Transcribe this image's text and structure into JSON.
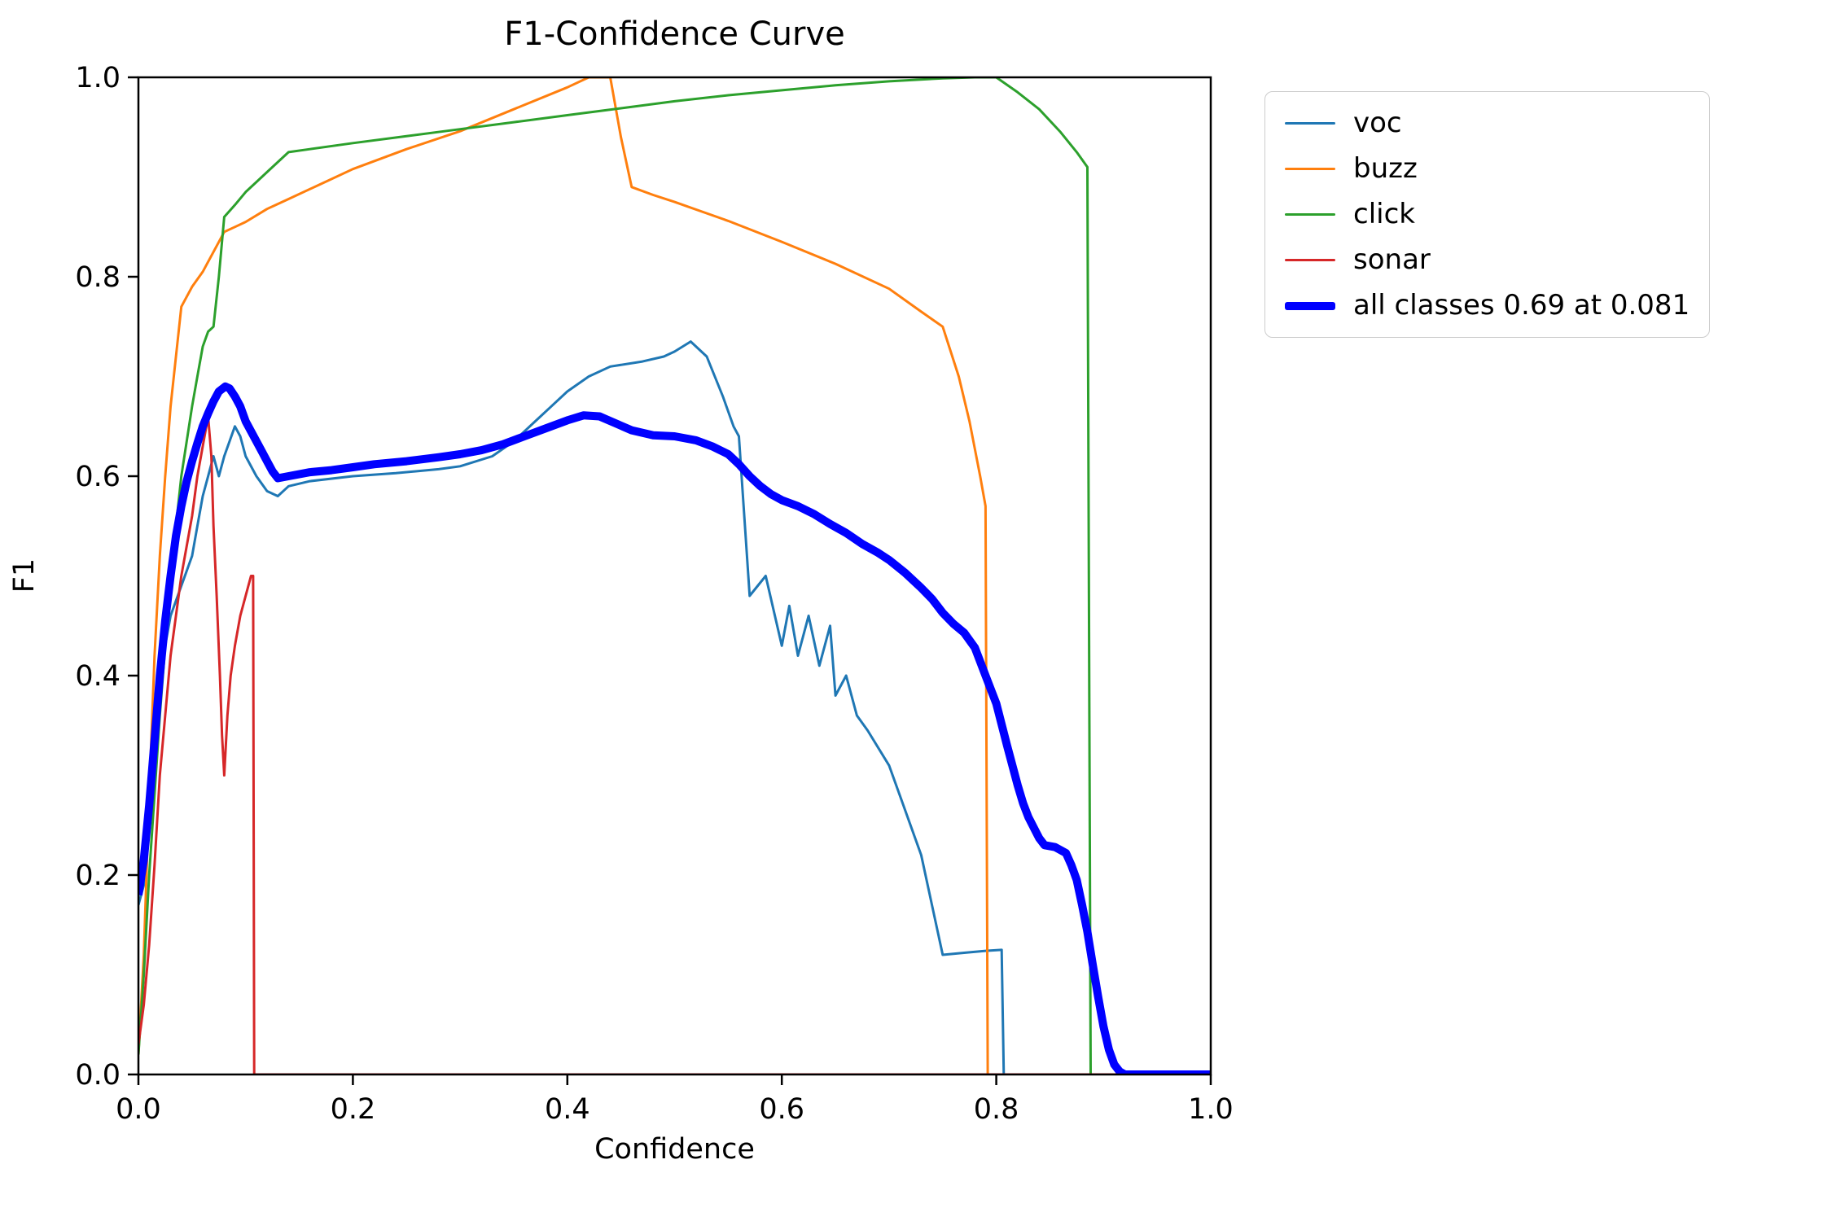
{
  "figure": {
    "title": "F1-Confidence Curve",
    "xlabel": "Confidence",
    "ylabel": "F1"
  },
  "chart_data": {
    "type": "line",
    "title": "F1-Confidence Curve",
    "xlabel": "Confidence",
    "ylabel": "F1",
    "xlim": [
      0.0,
      1.0
    ],
    "ylim": [
      0.0,
      1.0
    ],
    "xticks": [
      0.0,
      0.2,
      0.4,
      0.6,
      0.8,
      1.0
    ],
    "yticks": [
      0.0,
      0.2,
      0.4,
      0.6,
      0.8,
      1.0
    ],
    "grid": false,
    "background": "#ffffff",
    "axis_color": "#000000",
    "legend": {
      "position": "outside-upper-right",
      "entries": [
        "voc",
        "buzz",
        "click",
        "sonar",
        "all classes 0.69 at 0.081"
      ]
    },
    "best_f1": 0.69,
    "best_confidence": 0.081,
    "series": [
      {
        "name": "voc",
        "color": "#1f77b4",
        "width": 3,
        "points": [
          [
            0.0,
            0.17
          ],
          [
            0.005,
            0.19
          ],
          [
            0.01,
            0.26
          ],
          [
            0.015,
            0.33
          ],
          [
            0.02,
            0.4
          ],
          [
            0.03,
            0.46
          ],
          [
            0.04,
            0.49
          ],
          [
            0.05,
            0.52
          ],
          [
            0.055,
            0.55
          ],
          [
            0.06,
            0.58
          ],
          [
            0.07,
            0.62
          ],
          [
            0.075,
            0.6
          ],
          [
            0.08,
            0.62
          ],
          [
            0.09,
            0.65
          ],
          [
            0.095,
            0.64
          ],
          [
            0.1,
            0.62
          ],
          [
            0.11,
            0.6
          ],
          [
            0.12,
            0.585
          ],
          [
            0.13,
            0.58
          ],
          [
            0.14,
            0.59
          ],
          [
            0.16,
            0.595
          ],
          [
            0.2,
            0.6
          ],
          [
            0.24,
            0.603
          ],
          [
            0.28,
            0.607
          ],
          [
            0.3,
            0.61
          ],
          [
            0.33,
            0.62
          ],
          [
            0.35,
            0.635
          ],
          [
            0.37,
            0.655
          ],
          [
            0.385,
            0.67
          ],
          [
            0.4,
            0.685
          ],
          [
            0.42,
            0.7
          ],
          [
            0.44,
            0.71
          ],
          [
            0.47,
            0.715
          ],
          [
            0.49,
            0.72
          ],
          [
            0.5,
            0.725
          ],
          [
            0.515,
            0.735
          ],
          [
            0.53,
            0.72
          ],
          [
            0.545,
            0.68
          ],
          [
            0.555,
            0.65
          ],
          [
            0.56,
            0.64
          ],
          [
            0.57,
            0.48
          ],
          [
            0.585,
            0.5
          ],
          [
            0.6,
            0.43
          ],
          [
            0.607,
            0.47
          ],
          [
            0.615,
            0.42
          ],
          [
            0.625,
            0.46
          ],
          [
            0.635,
            0.41
          ],
          [
            0.645,
            0.45
          ],
          [
            0.65,
            0.38
          ],
          [
            0.66,
            0.4
          ],
          [
            0.67,
            0.36
          ],
          [
            0.68,
            0.345
          ],
          [
            0.7,
            0.31
          ],
          [
            0.71,
            0.28
          ],
          [
            0.73,
            0.22
          ],
          [
            0.74,
            0.17
          ],
          [
            0.75,
            0.12
          ],
          [
            0.77,
            0.122
          ],
          [
            0.79,
            0.124
          ],
          [
            0.805,
            0.125
          ],
          [
            0.807,
            0.0
          ],
          [
            1.0,
            0.0
          ]
        ]
      },
      {
        "name": "buzz",
        "color": "#ff7f0e",
        "width": 3,
        "points": [
          [
            0.0,
            0.02
          ],
          [
            0.005,
            0.12
          ],
          [
            0.01,
            0.28
          ],
          [
            0.015,
            0.42
          ],
          [
            0.02,
            0.52
          ],
          [
            0.025,
            0.6
          ],
          [
            0.03,
            0.67
          ],
          [
            0.035,
            0.72
          ],
          [
            0.04,
            0.77
          ],
          [
            0.05,
            0.79
          ],
          [
            0.06,
            0.805
          ],
          [
            0.07,
            0.825
          ],
          [
            0.08,
            0.845
          ],
          [
            0.09,
            0.85
          ],
          [
            0.1,
            0.855
          ],
          [
            0.12,
            0.868
          ],
          [
            0.14,
            0.878
          ],
          [
            0.17,
            0.893
          ],
          [
            0.2,
            0.908
          ],
          [
            0.25,
            0.928
          ],
          [
            0.3,
            0.946
          ],
          [
            0.35,
            0.968
          ],
          [
            0.4,
            0.99
          ],
          [
            0.42,
            1.0
          ],
          [
            0.44,
            1.0
          ],
          [
            0.45,
            0.94
          ],
          [
            0.46,
            0.89
          ],
          [
            0.48,
            0.882
          ],
          [
            0.5,
            0.875
          ],
          [
            0.55,
            0.856
          ],
          [
            0.6,
            0.835
          ],
          [
            0.65,
            0.813
          ],
          [
            0.7,
            0.788
          ],
          [
            0.73,
            0.765
          ],
          [
            0.75,
            0.75
          ],
          [
            0.765,
            0.7
          ],
          [
            0.775,
            0.655
          ],
          [
            0.785,
            0.6
          ],
          [
            0.79,
            0.57
          ],
          [
            0.792,
            0.0
          ],
          [
            1.0,
            0.0
          ]
        ]
      },
      {
        "name": "click",
        "color": "#2ca02c",
        "width": 3,
        "points": [
          [
            0.0,
            0.02
          ],
          [
            0.005,
            0.1
          ],
          [
            0.01,
            0.2
          ],
          [
            0.02,
            0.36
          ],
          [
            0.03,
            0.5
          ],
          [
            0.04,
            0.6
          ],
          [
            0.05,
            0.67
          ],
          [
            0.055,
            0.7
          ],
          [
            0.06,
            0.73
          ],
          [
            0.065,
            0.745
          ],
          [
            0.07,
            0.75
          ],
          [
            0.075,
            0.8
          ],
          [
            0.08,
            0.86
          ],
          [
            0.09,
            0.872
          ],
          [
            0.1,
            0.885
          ],
          [
            0.11,
            0.895
          ],
          [
            0.12,
            0.905
          ],
          [
            0.13,
            0.915
          ],
          [
            0.14,
            0.925
          ],
          [
            0.16,
            0.928
          ],
          [
            0.2,
            0.934
          ],
          [
            0.25,
            0.941
          ],
          [
            0.3,
            0.948
          ],
          [
            0.35,
            0.955
          ],
          [
            0.4,
            0.962
          ],
          [
            0.45,
            0.969
          ],
          [
            0.5,
            0.976
          ],
          [
            0.55,
            0.982
          ],
          [
            0.6,
            0.987
          ],
          [
            0.65,
            0.992
          ],
          [
            0.7,
            0.996
          ],
          [
            0.75,
            0.999
          ],
          [
            0.78,
            1.0
          ],
          [
            0.8,
            1.0
          ],
          [
            0.82,
            0.985
          ],
          [
            0.84,
            0.968
          ],
          [
            0.86,
            0.945
          ],
          [
            0.875,
            0.925
          ],
          [
            0.885,
            0.91
          ],
          [
            0.888,
            0.0
          ],
          [
            1.0,
            0.0
          ]
        ]
      },
      {
        "name": "sonar",
        "color": "#d62728",
        "width": 3,
        "points": [
          [
            0.0,
            0.03
          ],
          [
            0.005,
            0.07
          ],
          [
            0.01,
            0.13
          ],
          [
            0.015,
            0.21
          ],
          [
            0.02,
            0.3
          ],
          [
            0.025,
            0.36
          ],
          [
            0.03,
            0.42
          ],
          [
            0.035,
            0.46
          ],
          [
            0.04,
            0.5
          ],
          [
            0.045,
            0.53
          ],
          [
            0.05,
            0.56
          ],
          [
            0.055,
            0.6
          ],
          [
            0.06,
            0.63
          ],
          [
            0.065,
            0.66
          ],
          [
            0.068,
            0.62
          ],
          [
            0.07,
            0.55
          ],
          [
            0.073,
            0.48
          ],
          [
            0.076,
            0.4
          ],
          [
            0.078,
            0.34
          ],
          [
            0.08,
            0.3
          ],
          [
            0.083,
            0.36
          ],
          [
            0.086,
            0.4
          ],
          [
            0.09,
            0.43
          ],
          [
            0.095,
            0.46
          ],
          [
            0.1,
            0.48
          ],
          [
            0.105,
            0.5
          ],
          [
            0.107,
            0.5
          ],
          [
            0.108,
            0.0
          ],
          [
            1.0,
            0.0
          ]
        ]
      },
      {
        "name": "all classes 0.69 at 0.081",
        "color": "#0000ff",
        "width": 10,
        "points": [
          [
            0.0,
            0.18
          ],
          [
            0.005,
            0.215
          ],
          [
            0.01,
            0.27
          ],
          [
            0.015,
            0.335
          ],
          [
            0.02,
            0.4
          ],
          [
            0.025,
            0.455
          ],
          [
            0.03,
            0.5
          ],
          [
            0.035,
            0.54
          ],
          [
            0.04,
            0.57
          ],
          [
            0.045,
            0.595
          ],
          [
            0.05,
            0.615
          ],
          [
            0.055,
            0.633
          ],
          [
            0.06,
            0.65
          ],
          [
            0.065,
            0.663
          ],
          [
            0.07,
            0.675
          ],
          [
            0.075,
            0.685
          ],
          [
            0.081,
            0.69
          ],
          [
            0.085,
            0.688
          ],
          [
            0.09,
            0.68
          ],
          [
            0.095,
            0.67
          ],
          [
            0.1,
            0.655
          ],
          [
            0.105,
            0.645
          ],
          [
            0.11,
            0.635
          ],
          [
            0.115,
            0.625
          ],
          [
            0.12,
            0.615
          ],
          [
            0.125,
            0.605
          ],
          [
            0.13,
            0.598
          ],
          [
            0.14,
            0.6
          ],
          [
            0.16,
            0.604
          ],
          [
            0.18,
            0.606
          ],
          [
            0.2,
            0.609
          ],
          [
            0.22,
            0.612
          ],
          [
            0.25,
            0.615
          ],
          [
            0.28,
            0.619
          ],
          [
            0.3,
            0.622
          ],
          [
            0.32,
            0.626
          ],
          [
            0.34,
            0.632
          ],
          [
            0.36,
            0.64
          ],
          [
            0.38,
            0.648
          ],
          [
            0.4,
            0.656
          ],
          [
            0.415,
            0.661
          ],
          [
            0.43,
            0.66
          ],
          [
            0.445,
            0.653
          ],
          [
            0.46,
            0.646
          ],
          [
            0.48,
            0.641
          ],
          [
            0.5,
            0.64
          ],
          [
            0.52,
            0.636
          ],
          [
            0.535,
            0.63
          ],
          [
            0.55,
            0.622
          ],
          [
            0.56,
            0.612
          ],
          [
            0.57,
            0.6
          ],
          [
            0.58,
            0.59
          ],
          [
            0.59,
            0.582
          ],
          [
            0.6,
            0.576
          ],
          [
            0.615,
            0.57
          ],
          [
            0.63,
            0.562
          ],
          [
            0.645,
            0.552
          ],
          [
            0.66,
            0.543
          ],
          [
            0.675,
            0.532
          ],
          [
            0.69,
            0.523
          ],
          [
            0.7,
            0.516
          ],
          [
            0.715,
            0.503
          ],
          [
            0.73,
            0.488
          ],
          [
            0.74,
            0.477
          ],
          [
            0.75,
            0.463
          ],
          [
            0.76,
            0.452
          ],
          [
            0.77,
            0.443
          ],
          [
            0.78,
            0.428
          ],
          [
            0.79,
            0.4
          ],
          [
            0.8,
            0.372
          ],
          [
            0.81,
            0.33
          ],
          [
            0.82,
            0.29
          ],
          [
            0.825,
            0.272
          ],
          [
            0.83,
            0.258
          ],
          [
            0.84,
            0.237
          ],
          [
            0.845,
            0.23
          ],
          [
            0.855,
            0.228
          ],
          [
            0.865,
            0.222
          ],
          [
            0.87,
            0.21
          ],
          [
            0.875,
            0.195
          ],
          [
            0.88,
            0.17
          ],
          [
            0.885,
            0.143
          ],
          [
            0.89,
            0.11
          ],
          [
            0.895,
            0.078
          ],
          [
            0.9,
            0.048
          ],
          [
            0.905,
            0.025
          ],
          [
            0.91,
            0.01
          ],
          [
            0.915,
            0.003
          ],
          [
            0.92,
            0.0
          ],
          [
            1.0,
            0.0
          ]
        ]
      }
    ]
  }
}
